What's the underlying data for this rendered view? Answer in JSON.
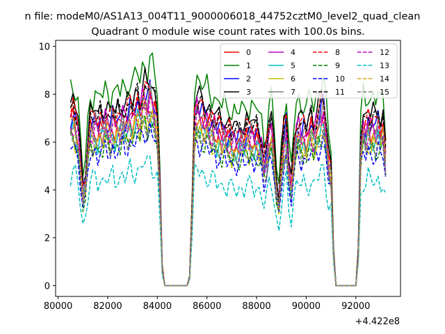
{
  "figure": {
    "suptitle": "n file: modeM0/AS1A13_004T11_9000006018_44752cztM0_level2_quad_clean",
    "offset_label": "+4.422e8"
  },
  "chart_data": {
    "type": "line",
    "title": "Quadrant 0 module wise count rates with 100.0s bins.",
    "xlabel": "",
    "ylabel": "",
    "x_offset": 442200000,
    "xlim": [
      79900,
      93800
    ],
    "ylim": [
      -0.45,
      10.25
    ],
    "xticks": [
      80000,
      82000,
      84000,
      86000,
      88000,
      90000,
      92000
    ],
    "xtick_labels": [
      "80000",
      "82000",
      "84000",
      "86000",
      "88000",
      "90000",
      "92000"
    ],
    "yticks": [
      0,
      2,
      4,
      6,
      8,
      10
    ],
    "ytick_labels": [
      "0",
      "2",
      "4",
      "6",
      "8",
      "10"
    ],
    "grid": false,
    "legend": {
      "placement": "top-right",
      "columns": 4
    },
    "x": [
      80500,
      80600,
      80700,
      80800,
      80900,
      81000,
      81100,
      81200,
      81300,
      81400,
      81500,
      81600,
      81700,
      81800,
      81900,
      82000,
      82100,
      82200,
      82300,
      82400,
      82500,
      82600,
      82700,
      82800,
      82900,
      83000,
      83100,
      83200,
      83300,
      83400,
      83500,
      83600,
      83700,
      83800,
      83900,
      84000,
      84100,
      84200,
      84300,
      84400,
      84500,
      84600,
      84700,
      84800,
      84900,
      85000,
      85100,
      85200,
      85300,
      85400,
      85500,
      85600,
      85700,
      85800,
      85900,
      86000,
      86100,
      86200,
      86300,
      86400,
      86500,
      86600,
      86700,
      86800,
      86900,
      87000,
      87100,
      87200,
      87300,
      87400,
      87500,
      87600,
      87700,
      87800,
      87900,
      88000,
      88100,
      88200,
      88300,
      88400,
      88500,
      88600,
      88700,
      88800,
      88900,
      89000,
      89100,
      89200,
      89300,
      89400,
      89500,
      89600,
      89700,
      89800,
      89900,
      90000,
      90100,
      90200,
      90300,
      90400,
      90500,
      90600,
      90700,
      90800,
      90900,
      91000,
      91100,
      91200,
      91300,
      91400,
      91500,
      91600,
      91700,
      91800,
      91900,
      92000,
      92100,
      92200,
      92300,
      92400,
      92500,
      92600,
      92700,
      92800,
      92900,
      93000,
      93100,
      93200
    ],
    "shape": [
      1.0,
      1.02,
      0.98,
      0.93,
      0.75,
      0.56,
      0.62,
      0.82,
      0.96,
      0.94,
      0.98,
      0.93,
      0.97,
      0.95,
      0.99,
      0.97,
      0.94,
      1.0,
      0.95,
      0.99,
      0.97,
      1.02,
      0.98,
      1.0,
      1.04,
      1.01,
      1.05,
      1.08,
      1.03,
      1.1,
      1.12,
      1.08,
      1.14,
      1.1,
      1.05,
      0.98,
      0.6,
      0.1,
      0.0,
      0.0,
      0.0,
      0.0,
      0.0,
      0.0,
      0.0,
      0.0,
      0.0,
      0.0,
      0.05,
      0.45,
      1.0,
      1.05,
      1.03,
      1.02,
      0.99,
      1.0,
      0.97,
      0.95,
      0.96,
      0.92,
      0.94,
      0.9,
      0.92,
      0.88,
      0.9,
      0.87,
      0.89,
      0.86,
      0.88,
      0.9,
      0.87,
      0.91,
      0.89,
      0.92,
      0.88,
      0.9,
      0.87,
      0.83,
      0.72,
      0.78,
      0.92,
      0.95,
      0.8,
      0.6,
      0.5,
      0.72,
      0.88,
      0.95,
      0.7,
      0.6,
      0.8,
      0.92,
      0.94,
      0.9,
      0.92,
      0.89,
      0.93,
      0.96,
      0.9,
      0.95,
      0.98,
      1.03,
      1.05,
      0.92,
      0.75,
      0.7,
      0.2,
      0.0,
      0.0,
      0.0,
      0.0,
      0.0,
      0.0,
      0.0,
      0.0,
      0.0,
      0.2,
      0.85,
      0.96,
      0.92,
      0.97,
      0.94,
      0.96,
      0.93,
      0.97,
      0.92,
      0.94,
      0.78
    ],
    "series": [
      {
        "name": "0",
        "color": "#ff0000",
        "dash": "solid",
        "level": 6.8
      },
      {
        "name": "1",
        "color": "#008000",
        "dash": "solid",
        "level": 8.3
      },
      {
        "name": "2",
        "color": "#0000ff",
        "dash": "solid",
        "level": 7.1
      },
      {
        "name": "3",
        "color": "#000000",
        "dash": "solid",
        "level": 7.6
      },
      {
        "name": "4",
        "color": "#bf00bf",
        "dash": "solid",
        "level": 7.0
      },
      {
        "name": "5",
        "color": "#00bfbf",
        "dash": "solid",
        "level": 6.4
      },
      {
        "name": "6",
        "color": "#bfbf00",
        "dash": "solid",
        "level": 6.2
      },
      {
        "name": "7",
        "color": "#808080",
        "dash": "solid",
        "level": 6.9
      },
      {
        "name": "8",
        "color": "#ff0000",
        "dash": "dashed",
        "level": 7.3
      },
      {
        "name": "9",
        "color": "#008000",
        "dash": "dashed",
        "level": 6.0
      },
      {
        "name": "10",
        "color": "#0000ff",
        "dash": "dashed",
        "level": 5.8
      },
      {
        "name": "11",
        "color": "#000000",
        "dash": "dashed",
        "level": 7.4
      },
      {
        "name": "12",
        "color": "#bf00bf",
        "dash": "dashed",
        "level": 6.6
      },
      {
        "name": "13",
        "color": "#00bfbf",
        "dash": "dashed",
        "level": 4.6
      },
      {
        "name": "14",
        "color": "#daa520",
        "dash": "dashed",
        "level": 6.5
      },
      {
        "name": "15",
        "color": "#808080",
        "dash": "dashed",
        "level": 6.2
      }
    ]
  }
}
